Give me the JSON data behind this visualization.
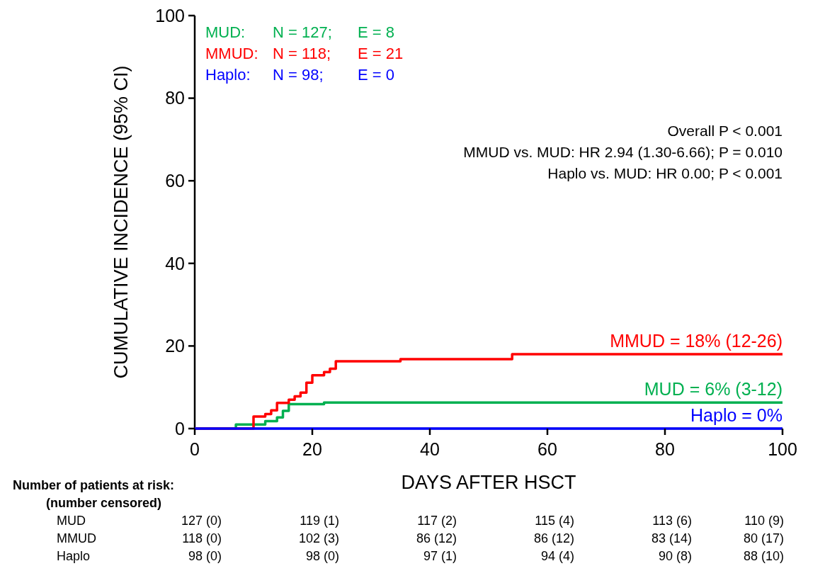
{
  "chart_data": {
    "type": "step",
    "xlabel": "DAYS AFTER HSCT",
    "ylabel": "CUMULATIVE INCIDENCE (95% CI)",
    "xlim": [
      0,
      100
    ],
    "xticks": [
      0,
      20,
      40,
      60,
      80,
      100
    ],
    "ylim": [
      0,
      100
    ],
    "yticks": [
      0,
      20,
      40,
      60,
      80,
      100
    ],
    "grid": false,
    "series": [
      {
        "name": "MUD: N = 127; E = 8",
        "color": "#00b050",
        "x": [
          0,
          7,
          12,
          14,
          15,
          16,
          22,
          100
        ],
        "values": [
          0,
          1.0,
          1.8,
          2.7,
          4.3,
          5.9,
          6.3,
          6.3
        ]
      },
      {
        "name": "MMUD: N = 118; E = 21",
        "color": "#ff0000",
        "x": [
          0,
          10,
          12,
          13,
          14,
          16,
          17,
          18,
          19,
          20,
          22,
          23,
          24,
          35,
          54,
          100
        ],
        "values": [
          0,
          2.9,
          3.5,
          4.4,
          6.2,
          7.0,
          7.8,
          8.7,
          11.1,
          12.9,
          13.7,
          14.5,
          16.3,
          16.8,
          18.0,
          18.0
        ]
      },
      {
        "name": "Haplo: N = 98; E = 0",
        "color": "#0000ff",
        "x": [
          0,
          100
        ],
        "values": [
          0,
          0
        ]
      }
    ],
    "annotations": [
      "Overall P < 0.001",
      "MMUD vs. MUD: HR 2.94 (1.30-6.66); P = 0.010",
      "Haplo vs. MUD: HR 0.00; P < 0.001",
      "MUD = 6% (3-12)",
      "MMUD = 18% (12-26)",
      "Haplo = 0%",
      "Number of patients at risk:",
      "(number censored)",
      "MUD",
      "127 (0)",
      "119 (1)",
      "117 (2)",
      "115 (4)",
      "113 (6)",
      "110 (9)",
      "MMUD",
      "118 (0)",
      "102 (3)",
      "86 (12)",
      "86 (12)",
      "83 (14)",
      "80 (17)",
      "Haplo",
      "98 (0)",
      "98 (0)",
      "97 (1)",
      "94 (4)",
      "90 (8)",
      "88 (10)"
    ]
  }
}
